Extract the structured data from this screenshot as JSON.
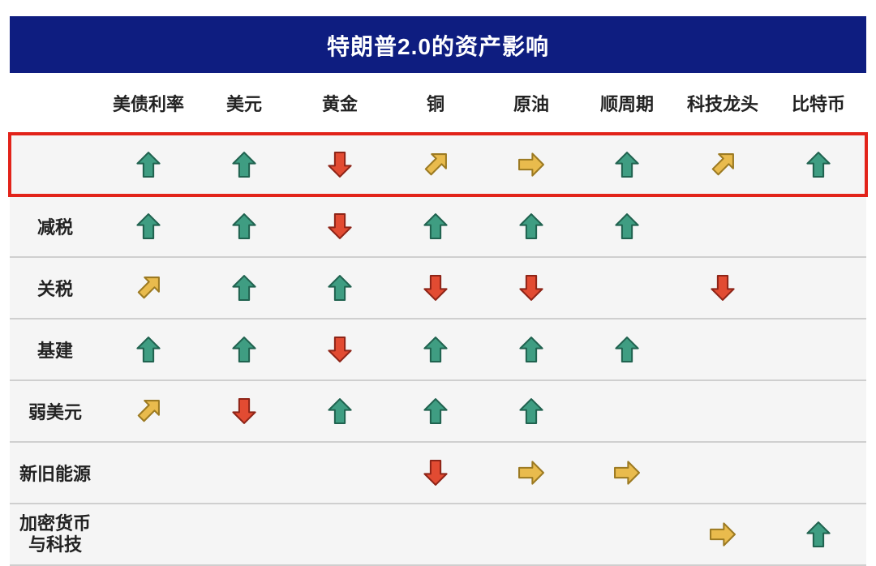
{
  "title": "特朗普2.0的资产影响",
  "columns": [
    "美债利率",
    "美元",
    "黄金",
    "铜",
    "原油",
    "顺周期",
    "科技龙头",
    "比特币"
  ],
  "row_labels": [
    "",
    "减税",
    "关税",
    "基建",
    "弱美元",
    "新旧能源",
    "加密货币\n与科技"
  ],
  "highlight_row_index": 0,
  "colors": {
    "up": {
      "fill": "#3f9d82",
      "stroke": "#20624f"
    },
    "down": {
      "fill": "#e24b32",
      "stroke": "#8e2417"
    },
    "diag": {
      "fill": "#e9bb4d",
      "stroke": "#9c7a22"
    },
    "right": {
      "fill": "#e9bb4d",
      "stroke": "#9c7a22"
    }
  },
  "style": {
    "title_bg": "#0e1d80",
    "title_color": "#ffffff",
    "row_bg": "#f5f5f5",
    "header_bg": "#ffffff",
    "grid_line": "#cfcfcf",
    "highlight_border": "#e2231a",
    "font_color": "#222222",
    "title_fontsize": 28,
    "cell_fontsize": 22,
    "icon_size": 34
  },
  "cells": [
    [
      "up",
      "up",
      "down",
      "diag",
      "right",
      "up",
      "diag",
      "up"
    ],
    [
      "up",
      "up",
      "down",
      "up",
      "up",
      "up",
      "",
      ""
    ],
    [
      "diag",
      "up",
      "up",
      "down",
      "down",
      "",
      "down",
      ""
    ],
    [
      "up",
      "up",
      "down",
      "up",
      "up",
      "up",
      "",
      ""
    ],
    [
      "diag",
      "down",
      "up",
      "up",
      "up",
      "",
      "",
      ""
    ],
    [
      "",
      "",
      "",
      "down",
      "right",
      "right",
      "",
      ""
    ],
    [
      "",
      "",
      "",
      "",
      "",
      "",
      "right",
      "up"
    ]
  ]
}
